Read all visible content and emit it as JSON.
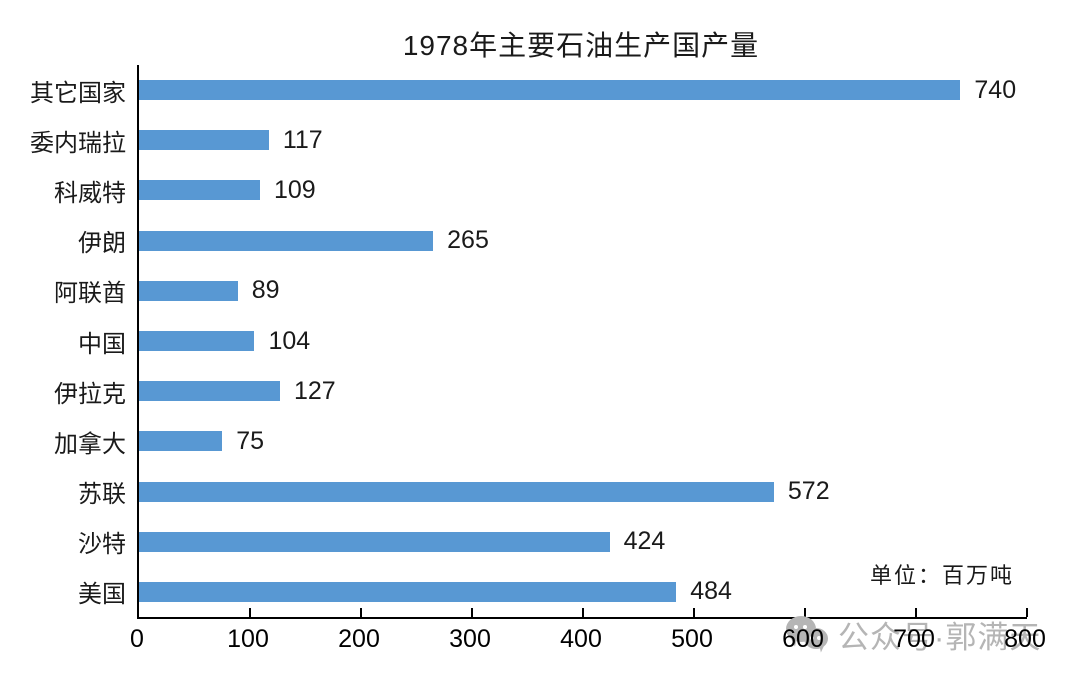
{
  "title": "1978年主要石油生产国产量",
  "unit_note": "单位：百万吨",
  "watermark": {
    "icon": "wechat-icon",
    "text": "公众号·郭满天",
    "color": "#b5b5b5"
  },
  "chart_data": {
    "type": "bar",
    "orientation": "horizontal",
    "title": "1978年主要石油生产国产量",
    "categories": [
      "其它国家",
      "委内瑞拉",
      "科威特",
      "伊朗",
      "阿联酋",
      "中国",
      "伊拉克",
      "加拿大",
      "苏联",
      "沙特",
      "美国"
    ],
    "values": [
      740,
      117,
      109,
      265,
      89,
      104,
      127,
      75,
      572,
      424,
      484
    ],
    "xlabel": "",
    "ylabel": "",
    "xlim": [
      0,
      800
    ],
    "xticks": [
      0,
      100,
      200,
      300,
      400,
      500,
      600,
      700,
      800
    ],
    "bar_color": "#5898D3",
    "axis_color": "#000000",
    "value_labels": true,
    "grid": false,
    "legend": null,
    "unit": "百万吨"
  }
}
